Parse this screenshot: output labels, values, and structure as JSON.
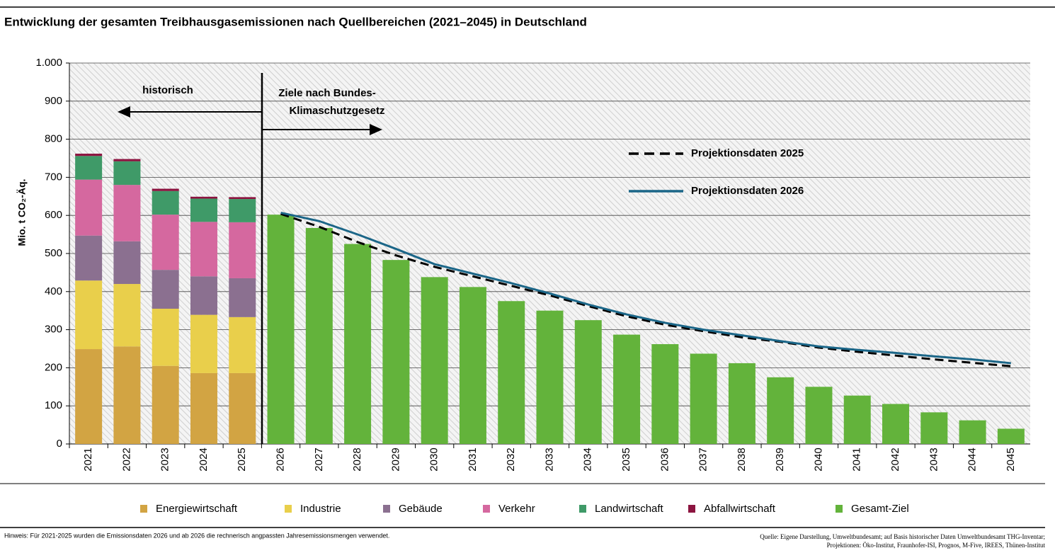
{
  "chart_data": {
    "type": "bar",
    "stacked": true,
    "title": "Entwicklung der gesamten Treibhausgasemissionen nach Quellbereichen (2021–2045) in Deutschland",
    "y_label": "Mio. t CO₂-Äq.",
    "categories": [
      "2021",
      "2022",
      "2023",
      "2024",
      "2025",
      "2026",
      "2027",
      "2028",
      "2029",
      "2030",
      "2031",
      "2032",
      "2033",
      "2034",
      "2035",
      "2036",
      "2037",
      "2038",
      "2039",
      "2040",
      "2041",
      "2042",
      "2043",
      "2044",
      "2045"
    ],
    "ylim": [
      0,
      1000
    ],
    "yticks": [
      0,
      100,
      200,
      300,
      400,
      500,
      600,
      700,
      800,
      900,
      {
        "value": 1000,
        "label": "1.000"
      }
    ],
    "grid": true,
    "annotations": {
      "historical": "historisch",
      "targets": [
        "Ziele nach Bundes-",
        "Klimaschutzgesetz"
      ]
    },
    "series": [
      {
        "name": "Energiewirtschaft",
        "kind": "bar",
        "color": "#d2a443",
        "values": [
          249,
          256,
          205,
          186,
          186,
          null,
          null,
          null,
          null,
          null,
          null,
          null,
          null,
          null,
          null,
          null,
          null,
          null,
          null,
          null,
          null,
          null,
          null,
          null,
          null
        ]
      },
      {
        "name": "Industrie",
        "kind": "bar",
        "color": "#e9cf4b",
        "values": [
          180,
          164,
          150,
          153,
          147,
          null,
          null,
          null,
          null,
          null,
          null,
          null,
          null,
          null,
          null,
          null,
          null,
          null,
          null,
          null,
          null,
          null,
          null,
          null,
          null
        ]
      },
      {
        "name": "Gebäude",
        "kind": "bar",
        "color": "#8b7090",
        "values": [
          118,
          112,
          102,
          101,
          102,
          null,
          null,
          null,
          null,
          null,
          null,
          null,
          null,
          null,
          null,
          null,
          null,
          null,
          null,
          null,
          null,
          null,
          null,
          null,
          null
        ]
      },
      {
        "name": "Verkehr",
        "kind": "bar",
        "color": "#d5689f",
        "values": [
          147,
          148,
          145,
          143,
          147,
          null,
          null,
          null,
          null,
          null,
          null,
          null,
          null,
          null,
          null,
          null,
          null,
          null,
          null,
          null,
          null,
          null,
          null,
          null,
          null
        ]
      },
      {
        "name": "Landwirtschaft",
        "kind": "bar",
        "color": "#3f9a68",
        "values": [
          62,
          62,
          62,
          61,
          61,
          null,
          null,
          null,
          null,
          null,
          null,
          null,
          null,
          null,
          null,
          null,
          null,
          null,
          null,
          null,
          null,
          null,
          null,
          null,
          null
        ]
      },
      {
        "name": "Abfallwirtschaft",
        "kind": "bar",
        "color": "#8c1440",
        "values": [
          6,
          6,
          6,
          5,
          5,
          null,
          null,
          null,
          null,
          null,
          null,
          null,
          null,
          null,
          null,
          null,
          null,
          null,
          null,
          null,
          null,
          null,
          null,
          null,
          null
        ]
      },
      {
        "name": "Gesamt-Ziel",
        "kind": "bar",
        "color": "#63b33b",
        "values": [
          null,
          null,
          null,
          null,
          null,
          602,
          567,
          525,
          483,
          438,
          412,
          375,
          350,
          325,
          287,
          262,
          237,
          212,
          175,
          150,
          127,
          105,
          83,
          62,
          40
        ]
      },
      {
        "name": "Projektionsdaten 2025",
        "kind": "line",
        "dashed": true,
        "color": "#000000",
        "values": [
          null,
          null,
          null,
          null,
          null,
          604,
          570,
          530,
          495,
          465,
          440,
          415,
          390,
          362,
          335,
          313,
          296,
          280,
          268,
          253,
          242,
          232,
          222,
          213,
          204
        ]
      },
      {
        "name": "Projektionsdaten 2026",
        "kind": "line",
        "dashed": false,
        "color": "#1b6688",
        "values": [
          null,
          null,
          null,
          null,
          null,
          607,
          585,
          550,
          512,
          472,
          447,
          422,
          395,
          366,
          340,
          318,
          300,
          285,
          270,
          256,
          247,
          239,
          230,
          222,
          212
        ]
      }
    ],
    "note": "Hinweis: Für 2021-2025 wurden die Emissionsdaten 2026 und ab 2026 die rechnerisch angpassten Jahresemissionsmengen verwendet.",
    "source": [
      "Quelle: Eigene Darstellung, Umweltbundesamt;  auf Basis historischer Daten Umweltbundesamt THG-Inventar;",
      "Projektionen: Öko-Institut, Fraunhofer-ISI, Prognos, M-Five, IREES, Thünen-Institut"
    ]
  }
}
